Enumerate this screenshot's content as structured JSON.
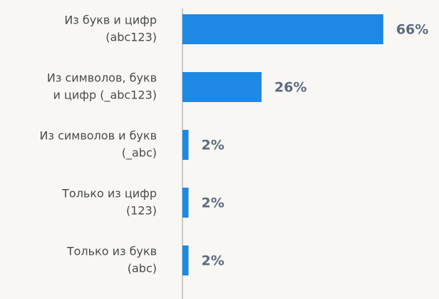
{
  "chart_data": {
    "type": "bar",
    "orientation": "horizontal",
    "categories": [
      [
        "Из букв и цифр",
        "(abc123)"
      ],
      [
        "Из символов, букв",
        "и цифр (_abc123)"
      ],
      [
        "Из символов и букв",
        "(_abc)"
      ],
      [
        "Только из цифр",
        "(123)"
      ],
      [
        "Только из букв",
        "(abc)"
      ]
    ],
    "values": [
      66,
      26,
      2,
      2,
      2
    ],
    "value_labels": [
      "66%",
      "26%",
      "2%",
      "2%",
      "2%"
    ],
    "color": "#1e88e5",
    "xlim": [
      0,
      100
    ]
  }
}
